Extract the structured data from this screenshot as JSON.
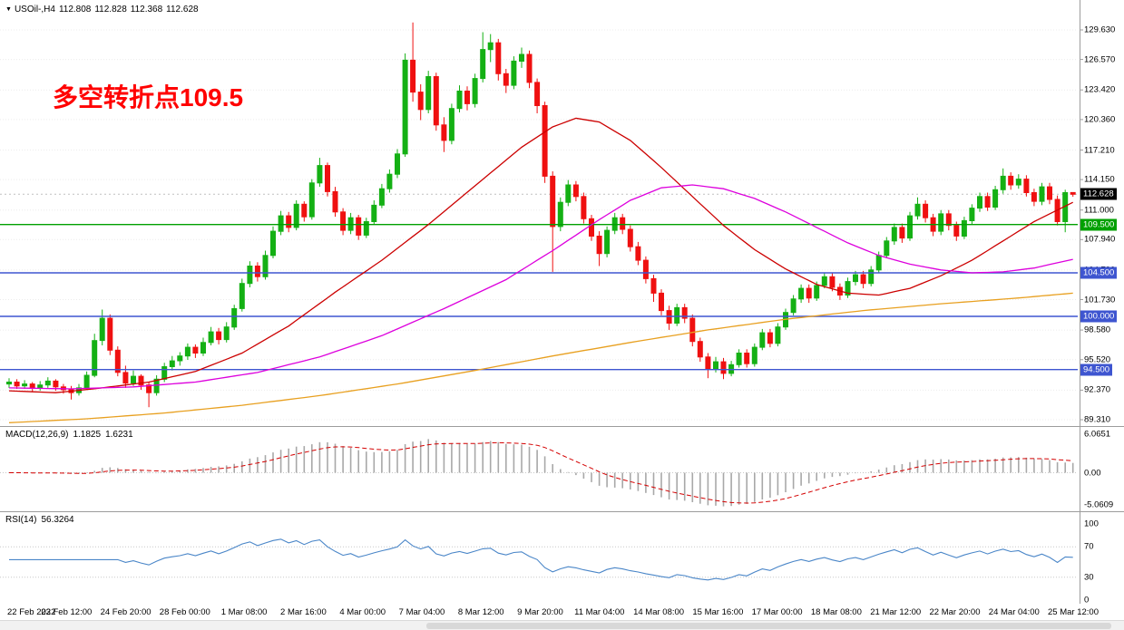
{
  "window": {
    "chart_header": {
      "expander_icon": "▼",
      "symbol_period": "USOil-,H4",
      "open": "112.808",
      "high": "112.828",
      "low": "112.368",
      "close": "112.628"
    },
    "annotation": {
      "text": "多空转折点109.5",
      "color": "#FF0000"
    }
  },
  "panels": {
    "macd": {
      "label": "MACD(12,26,9)",
      "value_main": "1.1825",
      "value_signal": "1.6231"
    },
    "rsi": {
      "label": "RSI(14)",
      "value": "56.3264"
    }
  },
  "chart_data": {
    "type": "candlestick",
    "title": "USOil- H4 chart with MACD and RSI",
    "symbol": "USOil-",
    "timeframe": "H4",
    "last_close": 112.628,
    "colors": {
      "up": "#14B014",
      "down": "#EF1010",
      "background": "#FFFFFF",
      "grid": "#ECECEC"
    },
    "price_axis": {
      "tick_prices": [
        129.63,
        126.57,
        123.42,
        120.36,
        117.21,
        114.15,
        111.0,
        107.94,
        104.79,
        101.73,
        98.58,
        95.52,
        92.37,
        89.31
      ]
    },
    "x_axis": {
      "labels": [
        "22 Feb 2022",
        "23 Feb 12:00",
        "24 Feb 20:00",
        "28 Feb 00:00",
        "1 Mar 08:00",
        "2 Mar 16:00",
        "4 Mar 00:00",
        "7 Mar 04:00",
        "8 Mar 12:00",
        "9 Mar 20:00",
        "11 Mar 04:00",
        "14 Mar 08:00",
        "15 Mar 16:00",
        "17 Mar 00:00",
        "18 Mar 08:00",
        "21 Mar 12:00",
        "22 Mar 20:00",
        "24 Mar 04:00",
        "25 Mar 12:00"
      ]
    },
    "horizontal_lines": [
      {
        "price": 109.5,
        "color": "#00A000",
        "name": "hline-109.5-pivot"
      },
      {
        "price": 104.5,
        "color": "#3E55D0",
        "name": "hline-104.5"
      },
      {
        "price": 100.0,
        "color": "#3E55D0",
        "name": "hline-100.0"
      },
      {
        "price": 94.5,
        "color": "#3E55D0",
        "name": "hline-94.5"
      }
    ],
    "price_tags": [
      {
        "price": 112.628,
        "label": "112.628",
        "bg": "#000000",
        "name": "current-price-tag",
        "interactable": false
      },
      {
        "price": 109.5,
        "label": "109.500",
        "bg": "#00A000",
        "name": "hline-price-tag-109.500",
        "interactable": true
      },
      {
        "price": 104.5,
        "label": "104.500",
        "bg": "#3E55D0",
        "name": "hline-price-tag-104.500",
        "interactable": true
      },
      {
        "price": 100.0,
        "label": "100.000",
        "bg": "#3E55D0",
        "name": "hline-price-tag-100.000",
        "interactable": true
      },
      {
        "price": 94.5,
        "label": "94.500",
        "bg": "#3E55D0",
        "name": "hline-price-tag-94.500",
        "interactable": true
      }
    ],
    "candles": [
      [
        93.0,
        93.6,
        92.6,
        93.2
      ],
      [
        93.2,
        93.5,
        92.5,
        92.8
      ],
      [
        92.8,
        93.4,
        92.5,
        93.0
      ],
      [
        93.0,
        93.2,
        92.2,
        92.6
      ],
      [
        92.6,
        93.3,
        92.3,
        92.9
      ],
      [
        92.9,
        93.7,
        92.6,
        93.3
      ],
      [
        93.3,
        93.5,
        92.3,
        92.7
      ],
      [
        92.7,
        93.0,
        92.0,
        92.4
      ],
      [
        92.4,
        92.8,
        91.4,
        92.1
      ],
      [
        92.1,
        93.0,
        91.8,
        92.6
      ],
      [
        92.6,
        94.3,
        92.4,
        93.9
      ],
      [
        93.9,
        98.2,
        93.7,
        97.5
      ],
      [
        97.5,
        100.7,
        97.0,
        99.8
      ],
      [
        99.8,
        100.2,
        96.0,
        96.5
      ],
      [
        96.5,
        96.9,
        93.8,
        94.2
      ],
      [
        94.2,
        94.9,
        92.6,
        93.1
      ],
      [
        93.1,
        94.4,
        92.8,
        93.8
      ],
      [
        93.8,
        94.0,
        92.4,
        92.9
      ],
      [
        92.9,
        93.2,
        90.6,
        92.1
      ],
      [
        92.1,
        93.9,
        91.8,
        93.5
      ],
      [
        93.5,
        95.2,
        93.2,
        94.8
      ],
      [
        94.8,
        95.9,
        94.4,
        95.4
      ],
      [
        95.4,
        96.3,
        94.9,
        95.9
      ],
      [
        95.9,
        97.2,
        95.5,
        96.8
      ],
      [
        96.8,
        97.1,
        95.7,
        96.2
      ],
      [
        96.2,
        97.8,
        95.9,
        97.3
      ],
      [
        97.3,
        98.9,
        97.0,
        98.4
      ],
      [
        98.4,
        98.8,
        97.1,
        97.6
      ],
      [
        97.6,
        99.4,
        97.3,
        98.9
      ],
      [
        98.9,
        101.2,
        98.6,
        100.8
      ],
      [
        100.8,
        103.9,
        100.5,
        103.4
      ],
      [
        103.4,
        105.7,
        103.0,
        105.2
      ],
      [
        105.2,
        105.6,
        103.6,
        104.1
      ],
      [
        104.1,
        106.8,
        103.8,
        106.3
      ],
      [
        106.3,
        109.3,
        106.0,
        108.8
      ],
      [
        108.8,
        110.9,
        108.4,
        110.4
      ],
      [
        110.4,
        110.8,
        108.7,
        109.2
      ],
      [
        109.2,
        112.0,
        108.9,
        111.6
      ],
      [
        111.6,
        111.9,
        109.8,
        110.3
      ],
      [
        110.3,
        114.2,
        110.0,
        113.8
      ],
      [
        113.8,
        116.4,
        113.4,
        115.6
      ],
      [
        115.6,
        115.9,
        112.4,
        112.9
      ],
      [
        112.9,
        113.4,
        110.3,
        110.8
      ],
      [
        110.8,
        111.2,
        108.4,
        108.9
      ],
      [
        108.9,
        110.7,
        108.5,
        110.2
      ],
      [
        110.2,
        110.5,
        107.9,
        108.4
      ],
      [
        108.4,
        110.2,
        108.1,
        109.8
      ],
      [
        109.8,
        112.0,
        109.5,
        111.5
      ],
      [
        111.5,
        113.7,
        111.2,
        113.2
      ],
      [
        113.2,
        115.2,
        112.8,
        114.7
      ],
      [
        114.7,
        117.3,
        114.3,
        116.8
      ],
      [
        116.8,
        127.2,
        116.5,
        126.5
      ],
      [
        126.5,
        130.4,
        122.2,
        123.2
      ],
      [
        123.2,
        124.0,
        120.3,
        121.4
      ],
      [
        121.4,
        125.4,
        121.0,
        124.8
      ],
      [
        124.8,
        125.2,
        119.2,
        119.8
      ],
      [
        119.8,
        120.6,
        117.0,
        118.2
      ],
      [
        118.2,
        122.0,
        117.8,
        121.5
      ],
      [
        121.5,
        123.9,
        121.1,
        123.3
      ],
      [
        123.3,
        123.8,
        121.3,
        122.0
      ],
      [
        122.0,
        125.1,
        121.6,
        124.6
      ],
      [
        124.6,
        129.4,
        124.2,
        127.6
      ],
      [
        127.6,
        129.2,
        126.3,
        128.3
      ],
      [
        128.3,
        128.7,
        124.4,
        125.1
      ],
      [
        125.1,
        125.6,
        123.1,
        123.9
      ],
      [
        123.9,
        126.9,
        123.5,
        126.4
      ],
      [
        126.4,
        127.8,
        125.7,
        127.1
      ],
      [
        127.1,
        127.5,
        123.6,
        124.2
      ],
      [
        124.2,
        124.6,
        121.0,
        121.8
      ],
      [
        121.8,
        122.2,
        113.8,
        114.5
      ],
      [
        114.5,
        115.0,
        104.6,
        109.3
      ],
      [
        109.3,
        112.3,
        108.8,
        111.8
      ],
      [
        111.8,
        114.1,
        111.4,
        113.6
      ],
      [
        113.6,
        114.0,
        111.9,
        112.4
      ],
      [
        112.4,
        112.8,
        109.6,
        110.1
      ],
      [
        110.1,
        110.5,
        107.8,
        108.3
      ],
      [
        108.3,
        108.8,
        105.2,
        106.5
      ],
      [
        106.5,
        109.3,
        106.1,
        108.9
      ],
      [
        108.9,
        110.7,
        108.5,
        110.2
      ],
      [
        110.2,
        110.6,
        108.5,
        109.0
      ],
      [
        109.0,
        109.4,
        106.7,
        107.2
      ],
      [
        107.2,
        107.7,
        105.3,
        105.8
      ],
      [
        105.8,
        106.2,
        103.4,
        103.9
      ],
      [
        103.9,
        104.3,
        101.5,
        102.4
      ],
      [
        102.4,
        102.8,
        100.1,
        100.6
      ],
      [
        100.6,
        101.1,
        98.6,
        99.3
      ],
      [
        99.3,
        101.3,
        99.0,
        100.9
      ],
      [
        100.9,
        101.3,
        99.3,
        99.8
      ],
      [
        99.8,
        100.2,
        96.9,
        97.4
      ],
      [
        97.4,
        97.8,
        95.3,
        95.8
      ],
      [
        95.8,
        96.2,
        93.6,
        94.6
      ],
      [
        94.6,
        95.8,
        94.2,
        95.3
      ],
      [
        95.3,
        95.7,
        93.5,
        94.1
      ],
      [
        94.1,
        95.4,
        93.8,
        95.0
      ],
      [
        95.0,
        96.6,
        94.7,
        96.2
      ],
      [
        96.2,
        96.6,
        94.7,
        95.1
      ],
      [
        95.1,
        97.2,
        94.8,
        96.8
      ],
      [
        96.8,
        98.7,
        96.5,
        98.3
      ],
      [
        98.3,
        98.7,
        96.8,
        97.2
      ],
      [
        97.2,
        99.3,
        96.9,
        98.9
      ],
      [
        98.9,
        100.8,
        98.6,
        100.4
      ],
      [
        100.4,
        102.2,
        100.1,
        101.8
      ],
      [
        101.8,
        103.3,
        101.4,
        102.9
      ],
      [
        102.9,
        103.3,
        101.4,
        101.9
      ],
      [
        101.9,
        103.6,
        101.6,
        103.2
      ],
      [
        103.2,
        104.5,
        102.9,
        104.1
      ],
      [
        104.1,
        104.5,
        102.6,
        103.0
      ],
      [
        103.0,
        103.4,
        101.7,
        102.2
      ],
      [
        102.2,
        104.0,
        101.9,
        103.6
      ],
      [
        103.6,
        104.7,
        103.2,
        104.3
      ],
      [
        104.3,
        104.7,
        102.9,
        103.4
      ],
      [
        103.4,
        105.2,
        103.1,
        104.8
      ],
      [
        104.8,
        106.7,
        104.5,
        106.3
      ],
      [
        106.3,
        108.2,
        106.0,
        107.8
      ],
      [
        107.8,
        109.6,
        107.4,
        109.2
      ],
      [
        109.2,
        109.6,
        107.6,
        108.1
      ],
      [
        108.1,
        110.8,
        107.8,
        110.4
      ],
      [
        110.4,
        112.3,
        110.0,
        111.6
      ],
      [
        111.6,
        112.0,
        109.7,
        110.2
      ],
      [
        110.2,
        110.6,
        108.3,
        108.8
      ],
      [
        108.8,
        111.0,
        108.4,
        110.6
      ],
      [
        110.6,
        111.0,
        108.9,
        109.4
      ],
      [
        109.4,
        109.8,
        107.8,
        108.3
      ],
      [
        108.3,
        110.3,
        108.0,
        109.9
      ],
      [
        109.9,
        111.6,
        109.5,
        111.2
      ],
      [
        111.2,
        112.8,
        110.8,
        112.4
      ],
      [
        112.4,
        112.8,
        110.9,
        111.3
      ],
      [
        111.3,
        113.5,
        111.0,
        113.1
      ],
      [
        113.1,
        115.3,
        112.7,
        114.5
      ],
      [
        114.5,
        114.9,
        113.1,
        113.6
      ],
      [
        113.6,
        114.7,
        113.2,
        114.2
      ],
      [
        114.2,
        114.6,
        112.4,
        112.8
      ],
      [
        112.8,
        113.2,
        111.4,
        111.9
      ],
      [
        111.9,
        113.8,
        111.5,
        113.4
      ],
      [
        113.4,
        113.8,
        111.6,
        112.1
      ],
      [
        112.1,
        112.5,
        109.4,
        109.8
      ],
      [
        109.8,
        113.1,
        108.7,
        112.8
      ],
      [
        112.808,
        112.828,
        112.368,
        112.628
      ]
    ],
    "moving_averages": [
      {
        "name": "ma-fast-red",
        "color": "#CC0000",
        "points": [
          [
            0,
            92.3
          ],
          [
            6,
            92.1
          ],
          [
            12,
            92.6
          ],
          [
            18,
            93.2
          ],
          [
            24,
            94.3
          ],
          [
            30,
            96.2
          ],
          [
            36,
            99.0
          ],
          [
            42,
            102.5
          ],
          [
            48,
            105.8
          ],
          [
            54,
            109.5
          ],
          [
            60,
            113.5
          ],
          [
            66,
            117.5
          ],
          [
            70,
            119.6
          ],
          [
            73,
            120.5
          ],
          [
            76,
            120.1
          ],
          [
            80,
            118.2
          ],
          [
            84,
            115.4
          ],
          [
            88,
            112.4
          ],
          [
            92,
            109.4
          ],
          [
            96,
            106.9
          ],
          [
            100,
            104.9
          ],
          [
            104,
            103.3
          ],
          [
            108,
            102.4
          ],
          [
            112,
            102.2
          ],
          [
            116,
            102.9
          ],
          [
            120,
            104.2
          ],
          [
            124,
            105.8
          ],
          [
            128,
            107.8
          ],
          [
            132,
            109.8
          ],
          [
            137,
            111.8
          ]
        ]
      },
      {
        "name": "ma-mid-magenta",
        "color": "#DD00DD",
        "points": [
          [
            0,
            92.6
          ],
          [
            8,
            92.5
          ],
          [
            16,
            92.7
          ],
          [
            24,
            93.2
          ],
          [
            32,
            94.2
          ],
          [
            40,
            95.8
          ],
          [
            48,
            98.0
          ],
          [
            56,
            100.8
          ],
          [
            64,
            103.8
          ],
          [
            70,
            106.8
          ],
          [
            76,
            110.0
          ],
          [
            80,
            112.0
          ],
          [
            84,
            113.3
          ],
          [
            88,
            113.6
          ],
          [
            92,
            113.2
          ],
          [
            96,
            112.2
          ],
          [
            100,
            110.8
          ],
          [
            104,
            109.2
          ],
          [
            108,
            107.6
          ],
          [
            112,
            106.3
          ],
          [
            116,
            105.4
          ],
          [
            120,
            104.8
          ],
          [
            124,
            104.5
          ],
          [
            128,
            104.6
          ],
          [
            132,
            105.0
          ],
          [
            137,
            105.9
          ]
        ]
      },
      {
        "name": "ma-slow-orange",
        "color": "#E8A020",
        "points": [
          [
            0,
            89.0
          ],
          [
            10,
            89.4
          ],
          [
            20,
            90.0
          ],
          [
            30,
            90.8
          ],
          [
            40,
            91.8
          ],
          [
            50,
            93.0
          ],
          [
            60,
            94.4
          ],
          [
            70,
            95.9
          ],
          [
            80,
            97.3
          ],
          [
            90,
            98.6
          ],
          [
            100,
            99.7
          ],
          [
            110,
            100.6
          ],
          [
            120,
            101.3
          ],
          [
            130,
            101.9
          ],
          [
            137,
            102.4
          ]
        ]
      }
    ],
    "macd": {
      "params": "12,26,9",
      "current": 1.1825,
      "signal_current": 1.6231,
      "histogram_color": "#A8A8A8",
      "signal_color": "#D40000",
      "axis_ticks": [
        {
          "label": "6.0651",
          "value": 6.0651
        },
        {
          "label": "0.00",
          "value": 0
        },
        {
          "label": "-5.0609",
          "value": -5.0609
        }
      ]
    },
    "rsi": {
      "period": 14,
      "current": 56.3264,
      "color": "#4A86C8",
      "levels": [
        70,
        30
      ],
      "axis_ticks": [
        {
          "label": "100",
          "value": 100
        },
        {
          "label": "70",
          "value": 70
        },
        {
          "label": "30",
          "value": 30
        },
        {
          "label": "0",
          "value": 0
        }
      ]
    }
  }
}
